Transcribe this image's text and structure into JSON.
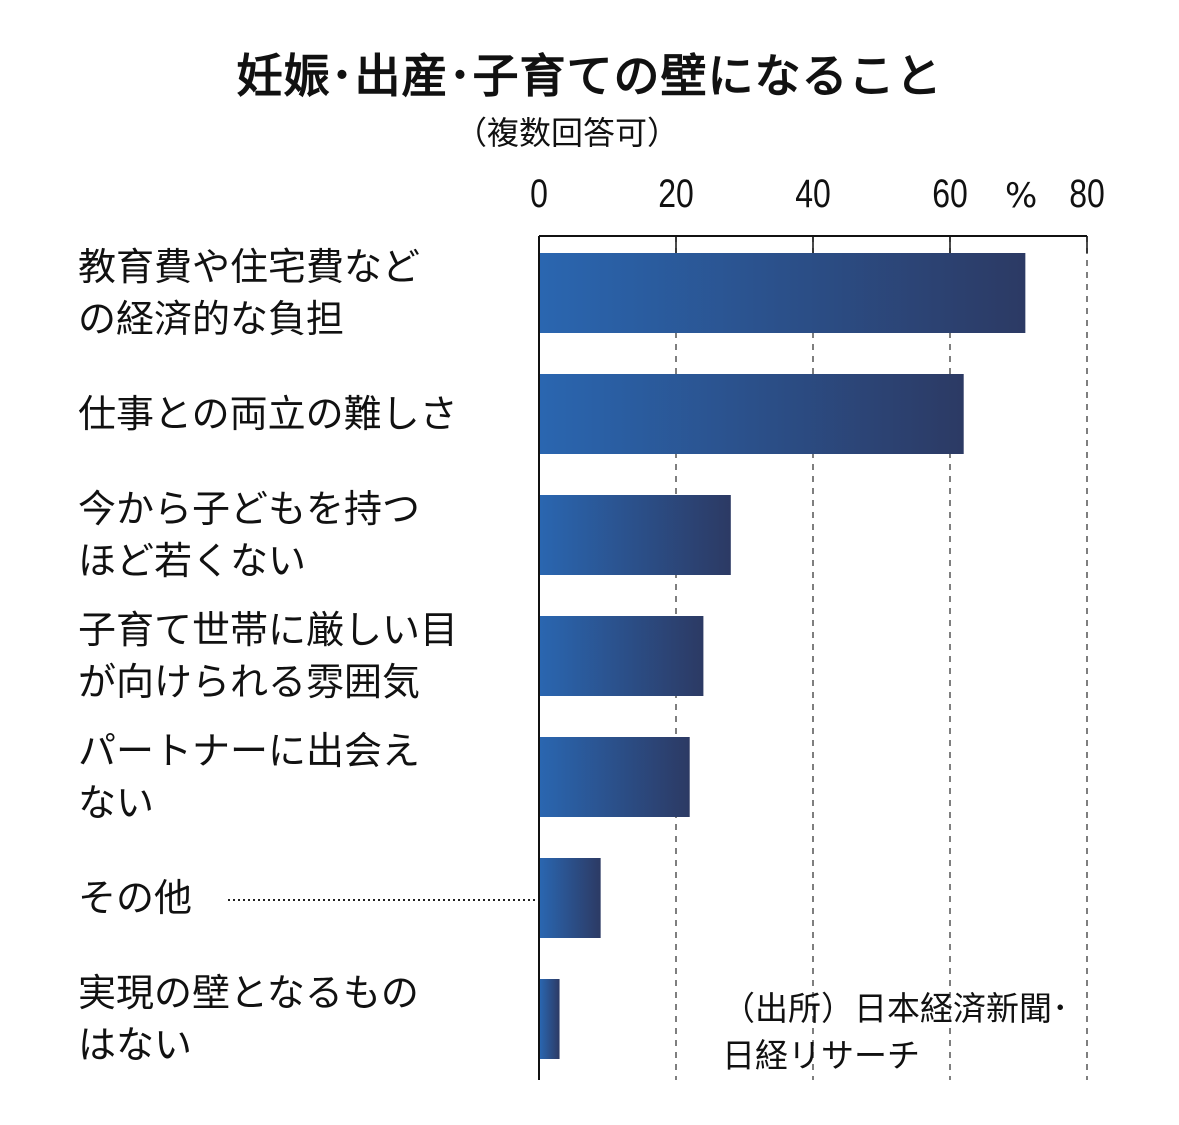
{
  "chart_data": {
    "type": "bar",
    "orientation": "horizontal",
    "title": "妊娠･出産･子育ての壁になること",
    "subtitle": "（複数回答可）",
    "unit": "%",
    "xlim": [
      0,
      80
    ],
    "ticks": [
      "0",
      "20",
      "40",
      "60",
      "80"
    ],
    "grid": "dashed vertical",
    "categories": [
      "教育費や住宅費など\nの経済的な負担",
      "仕事との両立の難しさ",
      "今から子どもを持つ\nほど若くない",
      "子育て世帯に厳しい目\nが向けられる雰囲気",
      "パートナーに出会え\nない",
      "その他",
      "実現の壁となるもの\nはない"
    ],
    "values": [
      71,
      62,
      28,
      24,
      22,
      9,
      3
    ],
    "bar_color_start": "#2a66b0",
    "bar_color_end": "#2c3a64",
    "source": "（出所）日本経済新聞･\n日経リサーチ"
  }
}
